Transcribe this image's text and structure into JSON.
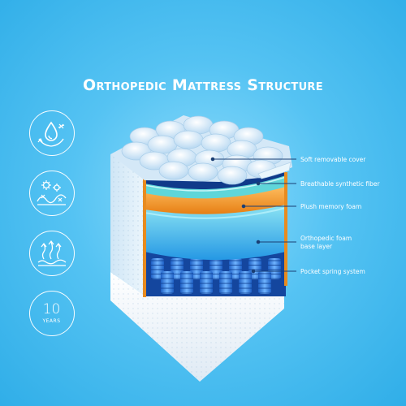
{
  "title": "Orthopedic Mattress Structure",
  "icons": [
    {
      "name": "water-drop-icon"
    },
    {
      "name": "antibacterial-fiber-icon"
    },
    {
      "name": "breathable-airflow-icon"
    },
    {
      "name": "ten-years-icon",
      "number": "10",
      "text": "YEARS"
    }
  ],
  "layers": [
    {
      "label": "Soft removable cover"
    },
    {
      "label": "Breathable synthetic fiber"
    },
    {
      "label": "Plush memory foam"
    },
    {
      "label": "Orthopedic foam\nbase layer"
    },
    {
      "label": "Pocket spring system"
    }
  ],
  "colors": {
    "background": "#4cbcf0",
    "cover": "#e8f3fb",
    "fiber_strip": "#5fd6d9",
    "memory_foam": "#f39a2c",
    "orthopedic_foam": "#2f9fe8",
    "springs": "#2a78e0",
    "callout_line": "#1a3f74"
  }
}
